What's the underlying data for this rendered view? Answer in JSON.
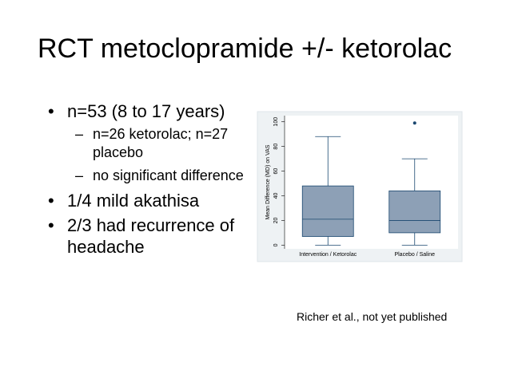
{
  "title": "RCT metoclopramide +/- ketorolac",
  "bullets": [
    {
      "text": "n=53 (8 to 17 years)",
      "sub": [
        "n=26 ketorolac; n=27 placebo",
        "no significant difference"
      ]
    },
    {
      "text": "1/4 mild akathisa"
    },
    {
      "text": "2/3 had recurrence of headache"
    }
  ],
  "citation": "Richer et al., not yet published",
  "chart_data": {
    "type": "box",
    "ylabel": "Mean Difference (MD) on VAS",
    "categories": [
      "Intervention / Ketorolac",
      "Placebo / Saline"
    ],
    "boxes": [
      {
        "min": 0,
        "q1": 7,
        "median": 21,
        "q3": 48,
        "max": 88
      },
      {
        "min": 0,
        "q1": 10,
        "median": 20,
        "q3": 44,
        "max": 70,
        "outliers": [
          99
        ]
      }
    ],
    "color": "#8da0b6",
    "line_color": "#1a476f",
    "ylim": [
      -3,
      105
    ],
    "yticks": [
      0,
      20,
      40,
      60,
      80,
      100
    ]
  }
}
